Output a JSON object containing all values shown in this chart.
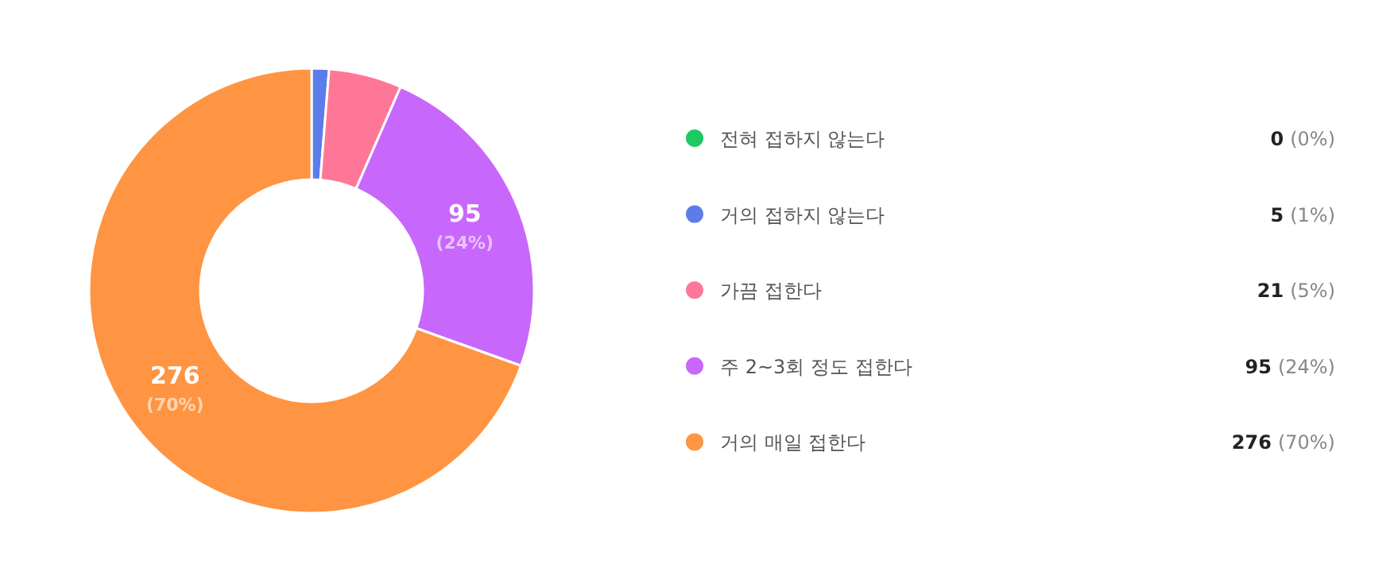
{
  "chart_data": {
    "type": "donut",
    "categories": [
      "전혀 접하지 않는다",
      "거의 접하지 않는다",
      "가끔 접한다",
      "주 2~3회 정도 접한다",
      "거의 매일 접한다"
    ],
    "values": [
      0,
      5,
      21,
      95,
      276
    ],
    "colors": [
      "#1dc962",
      "#5b7cea",
      "#ff7796",
      "#c867fb",
      "#ff9442"
    ],
    "value_labels": [
      "0 (0%)",
      "5 (1%)",
      "21 (5%)",
      "95 (24%)",
      "276 (70%)"
    ],
    "data_labels": true,
    "legend": "right"
  }
}
